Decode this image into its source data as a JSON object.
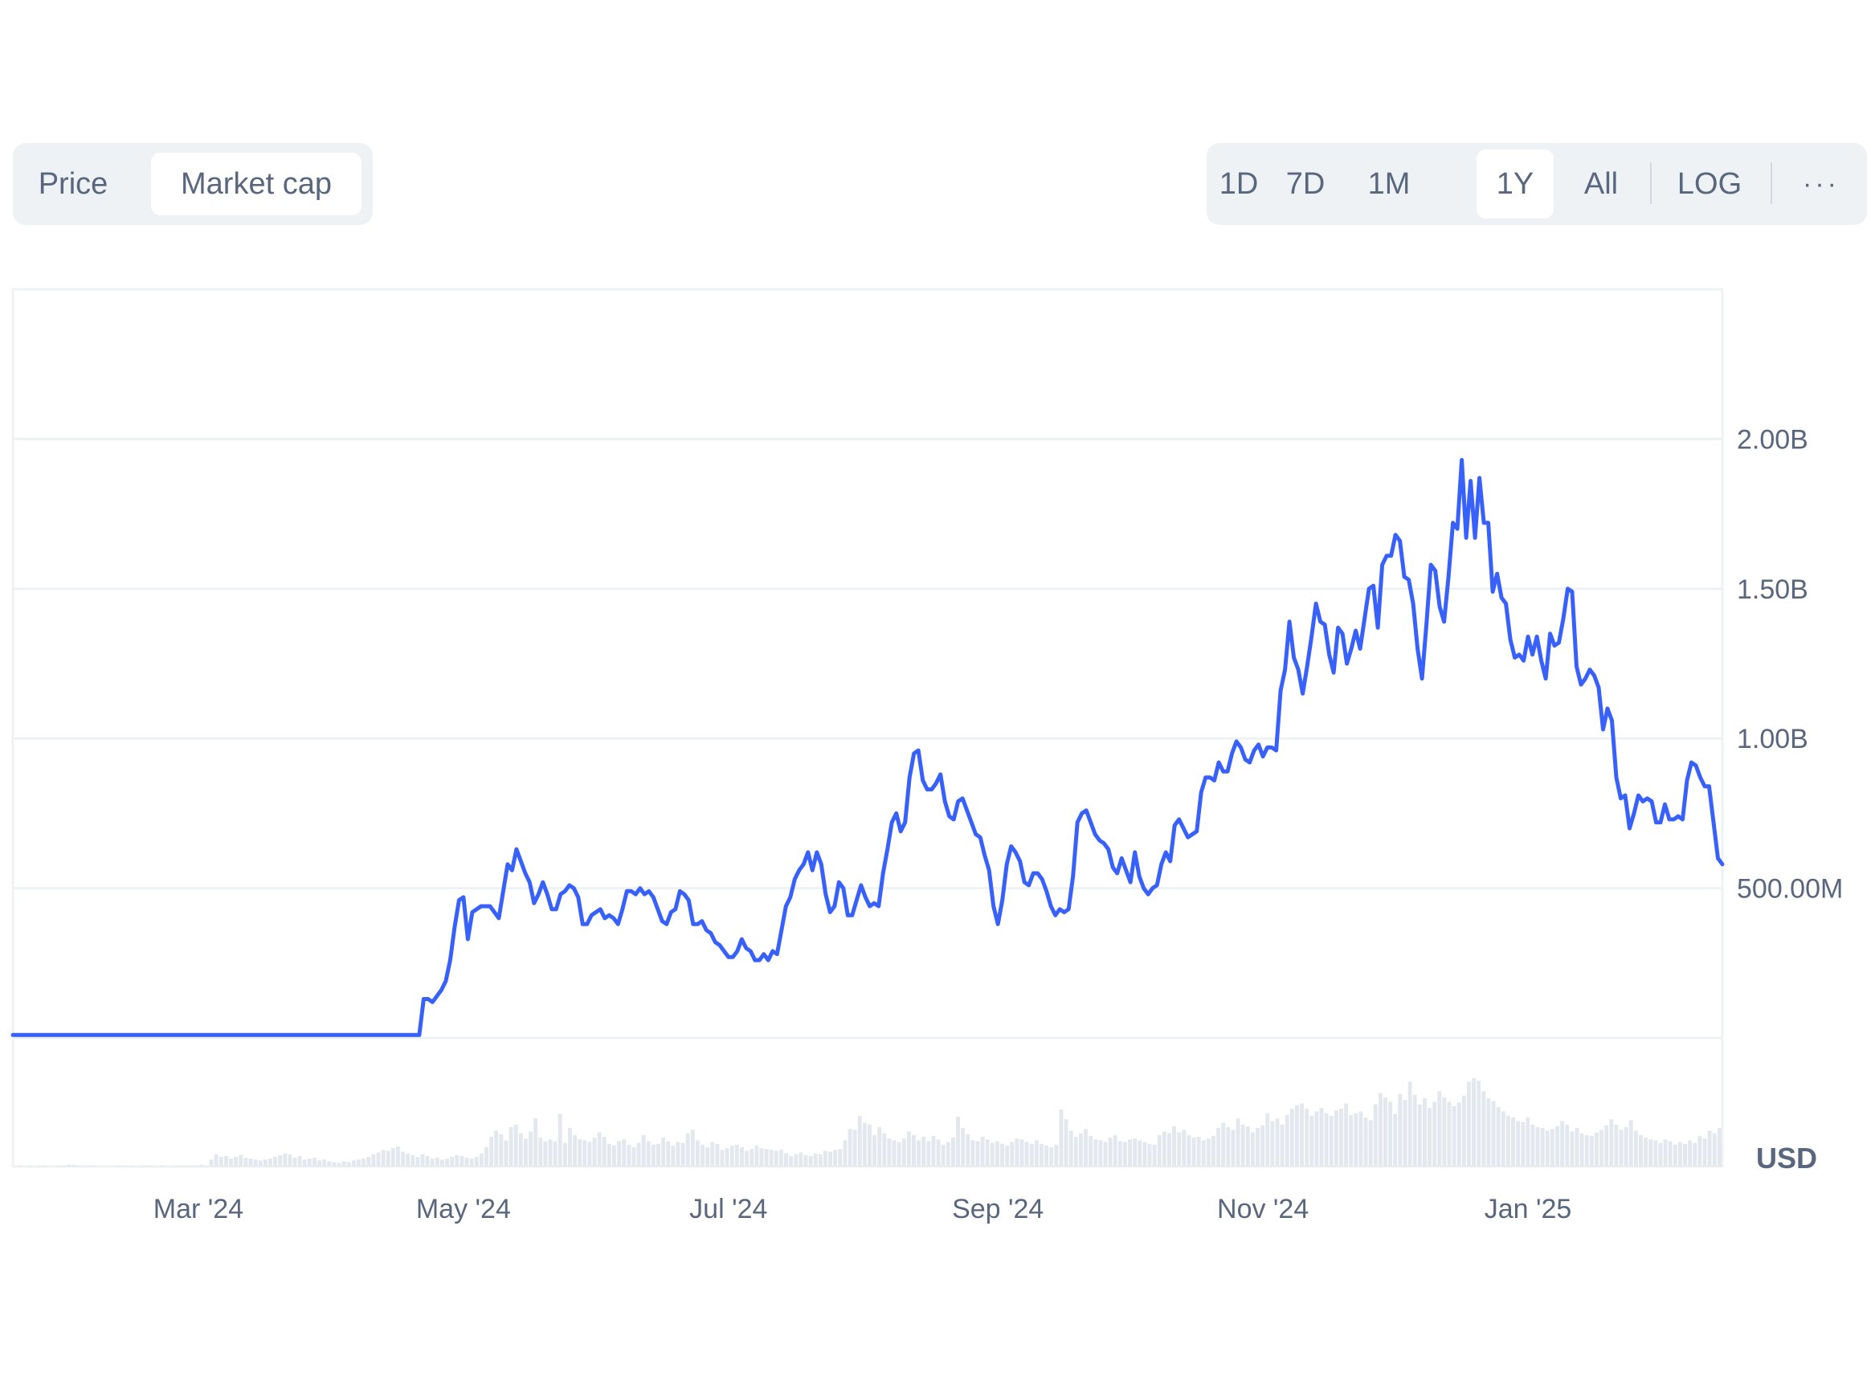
{
  "metric_tabs": [
    {
      "label": "Price",
      "active": false
    },
    {
      "label": "Market cap",
      "active": true
    }
  ],
  "ranges": [
    {
      "label": "1D",
      "active": false
    },
    {
      "label": "7D",
      "active": false
    },
    {
      "label": "1M",
      "active": false
    },
    {
      "label": "1Y",
      "active": true
    },
    {
      "label": "All",
      "active": false
    }
  ],
  "log_label": "LOG",
  "more_label": "···",
  "chart_data": {
    "type": "line",
    "title": "",
    "xlabel": "",
    "ylabel": "",
    "currency_label": "USD",
    "x_tick_labels": [
      "Mar '24",
      "May '24",
      "Jul '24",
      "Sep '24",
      "Nov '24",
      "Jan '25"
    ],
    "x_ticks_index": [
      42,
      102,
      162,
      223,
      283,
      343
    ],
    "y_ticks": [
      500000000,
      1000000000,
      1500000000,
      2000000000
    ],
    "y_tick_labels": [
      "500.00M",
      "1.00B",
      "1.50B",
      "2.00B"
    ],
    "ylim": [
      0,
      2500000000
    ],
    "series_color": "#3861fb",
    "grid": true,
    "series": [
      {
        "name": "",
        "values": [
          10000000,
          10000000,
          10000000,
          10000000,
          10000000,
          10000000,
          10000000,
          10000000,
          10000000,
          10000000,
          10000000,
          10000000,
          10000000,
          10000000,
          10000000,
          10000000,
          10000000,
          10000000,
          10000000,
          10000000,
          10000000,
          10000000,
          10000000,
          10000000,
          10000000,
          10000000,
          10000000,
          10000000,
          10000000,
          10000000,
          10000000,
          10000000,
          10000000,
          10000000,
          10000000,
          10000000,
          10000000,
          10000000,
          10000000,
          10000000,
          10000000,
          10000000,
          10000000,
          10000000,
          10000000,
          10000000,
          10000000,
          10000000,
          10000000,
          10000000,
          10000000,
          10000000,
          10000000,
          10000000,
          10000000,
          10000000,
          10000000,
          10000000,
          10000000,
          10000000,
          10000000,
          10000000,
          10000000,
          10000000,
          10000000,
          10000000,
          10000000,
          10000000,
          10000000,
          10000000,
          10000000,
          10000000,
          10000000,
          10000000,
          10000000,
          10000000,
          10000000,
          10000000,
          10000000,
          10000000,
          10000000,
          10000000,
          10000000,
          10000000,
          10000000,
          10000000,
          10000000,
          10000000,
          10000000,
          10000000,
          10000000,
          10000000,
          10000000,
          130000000,
          130000000,
          120000000,
          140000000,
          160000000,
          190000000,
          260000000,
          370000000,
          460000000,
          470000000,
          330000000,
          420000000,
          430000000,
          440000000,
          440000000,
          440000000,
          420000000,
          400000000,
          490000000,
          580000000,
          560000000,
          630000000,
          590000000,
          550000000,
          520000000,
          450000000,
          480000000,
          520000000,
          480000000,
          430000000,
          430000000,
          480000000,
          490000000,
          510000000,
          500000000,
          470000000,
          380000000,
          380000000,
          410000000,
          420000000,
          430000000,
          400000000,
          410000000,
          400000000,
          380000000,
          430000000,
          490000000,
          490000000,
          480000000,
          500000000,
          480000000,
          490000000,
          470000000,
          430000000,
          390000000,
          380000000,
          420000000,
          430000000,
          490000000,
          480000000,
          460000000,
          380000000,
          380000000,
          390000000,
          360000000,
          350000000,
          320000000,
          310000000,
          290000000,
          270000000,
          270000000,
          290000000,
          330000000,
          300000000,
          290000000,
          260000000,
          260000000,
          280000000,
          260000000,
          290000000,
          280000000,
          360000000,
          440000000,
          470000000,
          530000000,
          560000000,
          580000000,
          620000000,
          560000000,
          620000000,
          580000000,
          480000000,
          420000000,
          440000000,
          520000000,
          500000000,
          410000000,
          410000000,
          460000000,
          510000000,
          470000000,
          440000000,
          450000000,
          440000000,
          550000000,
          630000000,
          720000000,
          750000000,
          690000000,
          720000000,
          870000000,
          950000000,
          960000000,
          860000000,
          830000000,
          830000000,
          850000000,
          880000000,
          790000000,
          740000000,
          730000000,
          790000000,
          800000000,
          760000000,
          720000000,
          680000000,
          670000000,
          610000000,
          560000000,
          440000000,
          380000000,
          460000000,
          580000000,
          640000000,
          620000000,
          590000000,
          520000000,
          510000000,
          550000000,
          550000000,
          530000000,
          490000000,
          440000000,
          410000000,
          430000000,
          420000000,
          430000000,
          540000000,
          720000000,
          750000000,
          760000000,
          720000000,
          680000000,
          660000000,
          650000000,
          630000000,
          570000000,
          550000000,
          600000000,
          560000000,
          520000000,
          620000000,
          540000000,
          500000000,
          480000000,
          500000000,
          510000000,
          580000000,
          620000000,
          590000000,
          710000000,
          730000000,
          700000000,
          670000000,
          680000000,
          690000000,
          820000000,
          870000000,
          870000000,
          860000000,
          920000000,
          890000000,
          890000000,
          950000000,
          990000000,
          970000000,
          930000000,
          920000000,
          960000000,
          980000000,
          940000000,
          970000000,
          970000000,
          960000000,
          1160000000,
          1230000000,
          1390000000,
          1270000000,
          1230000000,
          1150000000,
          1240000000,
          1340000000,
          1450000000,
          1390000000,
          1380000000,
          1280000000,
          1220000000,
          1370000000,
          1350000000,
          1250000000,
          1300000000,
          1360000000,
          1300000000,
          1400000000,
          1500000000,
          1510000000,
          1370000000,
          1580000000,
          1610000000,
          1610000000,
          1680000000,
          1660000000,
          1540000000,
          1530000000,
          1450000000,
          1300000000,
          1200000000,
          1380000000,
          1580000000,
          1560000000,
          1440000000,
          1390000000,
          1540000000,
          1720000000,
          1700000000,
          1930000000,
          1670000000,
          1860000000,
          1670000000,
          1870000000,
          1720000000,
          1720000000,
          1490000000,
          1550000000,
          1470000000,
          1450000000,
          1330000000,
          1270000000,
          1280000000,
          1260000000,
          1340000000,
          1280000000,
          1340000000,
          1260000000,
          1200000000,
          1350000000,
          1310000000,
          1320000000,
          1400000000,
          1500000000,
          1490000000,
          1240000000,
          1180000000,
          1200000000,
          1230000000,
          1210000000,
          1170000000,
          1030000000,
          1100000000,
          1060000000,
          870000000,
          800000000,
          810000000,
          700000000,
          750000000,
          810000000,
          790000000,
          800000000,
          790000000,
          720000000,
          720000000,
          780000000,
          730000000,
          730000000,
          740000000,
          730000000,
          860000000,
          920000000,
          910000000,
          870000000,
          840000000,
          840000000,
          720000000,
          600000000,
          580000000
        ]
      }
    ],
    "volume": [
      0,
      1,
      0,
      1,
      0,
      1,
      1,
      0,
      0,
      1,
      1,
      2,
      2,
      1,
      0,
      1,
      1,
      0,
      0,
      0,
      0,
      1,
      1,
      0,
      1,
      0,
      1,
      1,
      1,
      0,
      1,
      0,
      0,
      1,
      1,
      1,
      1,
      1,
      2,
      1,
      8,
      14,
      11,
      12,
      9,
      11,
      13,
      10,
      9,
      8,
      7,
      8,
      9,
      11,
      13,
      15,
      14,
      10,
      12,
      8,
      9,
      10,
      7,
      8,
      6,
      5,
      4,
      6,
      5,
      7,
      8,
      9,
      11,
      14,
      16,
      19,
      18,
      21,
      23,
      17,
      15,
      13,
      11,
      14,
      12,
      9,
      10,
      8,
      9,
      11,
      13,
      12,
      10,
      9,
      11,
      15,
      22,
      34,
      41,
      37,
      30,
      45,
      48,
      38,
      32,
      40,
      55,
      33,
      29,
      31,
      29,
      60,
      27,
      44,
      36,
      31,
      30,
      28,
      33,
      39,
      34,
      26,
      24,
      29,
      31,
      25,
      22,
      27,
      36,
      29,
      25,
      26,
      33,
      29,
      24,
      28,
      27,
      38,
      42,
      30,
      25,
      22,
      28,
      26,
      19,
      21,
      24,
      25,
      22,
      18,
      20,
      24,
      21,
      20,
      19,
      18,
      19,
      15,
      12,
      14,
      16,
      13,
      12,
      15,
      14,
      18,
      17,
      19,
      20,
      30,
      43,
      42,
      58,
      50,
      48,
      36,
      45,
      38,
      32,
      30,
      28,
      32,
      40,
      36,
      30,
      34,
      29,
      35,
      31,
      25,
      28,
      33,
      57,
      44,
      37,
      30,
      29,
      34,
      31,
      27,
      29,
      26,
      24,
      28,
      32,
      31,
      28,
      26,
      30,
      26,
      24,
      22,
      25,
      65,
      54,
      41,
      34,
      38,
      43,
      35,
      31,
      30,
      28,
      33,
      36,
      29,
      28,
      31,
      32,
      30,
      28,
      26,
      25,
      36,
      40,
      38,
      46,
      39,
      42,
      36,
      33,
      34,
      30,
      32,
      35,
      44,
      50,
      45,
      42,
      55,
      48,
      46,
      39,
      44,
      47,
      61,
      52,
      55,
      48,
      59,
      66,
      70,
      72,
      66,
      58,
      63,
      67,
      61,
      58,
      64,
      66,
      72,
      59,
      61,
      63,
      56,
      53,
      71,
      84,
      79,
      74,
      60,
      83,
      76,
      97,
      82,
      71,
      78,
      67,
      74,
      86,
      79,
      74,
      69,
      73,
      81,
      97,
      101,
      98,
      86,
      78,
      75,
      68,
      63,
      58,
      56,
      52,
      51,
      56,
      48,
      45,
      44,
      41,
      43,
      46,
      52,
      48,
      40,
      44,
      38,
      36,
      35,
      39,
      42,
      47,
      54,
      48,
      42,
      45,
      53,
      41,
      36,
      33,
      31,
      30,
      27,
      31,
      29,
      25,
      28,
      26,
      30,
      27,
      35,
      32,
      41,
      38,
      44
    ]
  }
}
